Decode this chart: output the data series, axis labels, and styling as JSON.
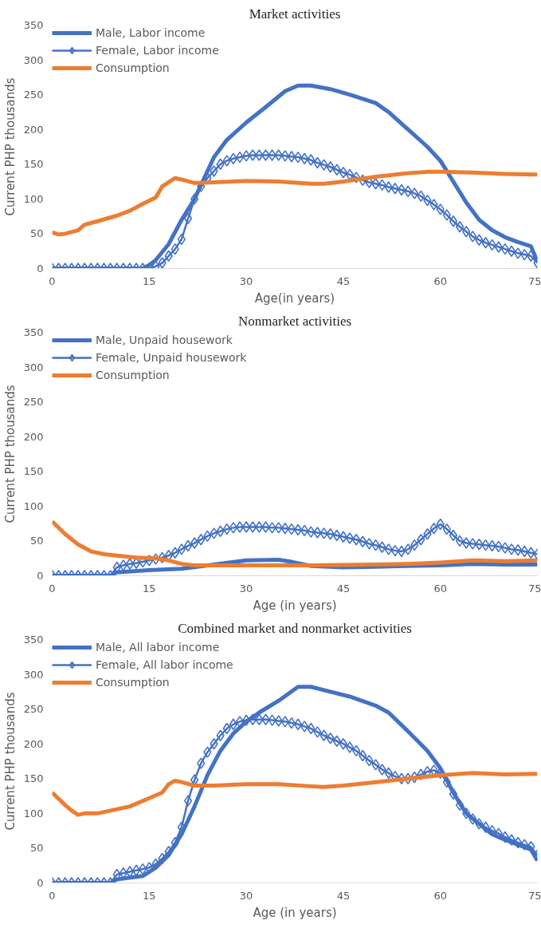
{
  "chart_data": [
    {
      "type": "line",
      "title": "Market activities",
      "xlabel": "Age(in years)",
      "ylabel": "Current PHP thousands",
      "xlim": [
        0,
        75
      ],
      "xticks": [
        0,
        15,
        30,
        45,
        60,
        75
      ],
      "ylim": [
        0,
        350
      ],
      "yticks": [
        0,
        50,
        100,
        150,
        200,
        250,
        300,
        350
      ],
      "grid": false,
      "legend": "top left",
      "series": [
        {
          "name": "Male, Labor income",
          "color": "#4472c4",
          "marker": "none",
          "x": [
            0,
            14,
            15,
            16,
            18,
            20,
            22,
            24,
            25,
            27,
            30,
            33,
            36,
            38,
            40,
            43,
            46,
            50,
            52,
            55,
            58,
            60,
            62,
            64,
            66,
            68,
            70,
            72,
            74,
            75
          ],
          "values": [
            0,
            0,
            5,
            12,
            35,
            70,
            100,
            140,
            160,
            185,
            210,
            232,
            255,
            263,
            263,
            258,
            250,
            238,
            225,
            200,
            175,
            155,
            125,
            95,
            70,
            55,
            45,
            38,
            32,
            10
          ]
        },
        {
          "name": "Female, Labor income",
          "color": "#4472c4",
          "marker": "diamond",
          "x": [
            0,
            1,
            2,
            3,
            4,
            5,
            6,
            7,
            8,
            9,
            10,
            11,
            12,
            13,
            14,
            15,
            16,
            17,
            18,
            19,
            20,
            21,
            22,
            23,
            24,
            25,
            26,
            27,
            28,
            29,
            30,
            31,
            32,
            33,
            34,
            35,
            36,
            37,
            38,
            39,
            40,
            41,
            42,
            43,
            44,
            45,
            46,
            47,
            48,
            49,
            50,
            51,
            52,
            53,
            54,
            55,
            56,
            57,
            58,
            59,
            60,
            61,
            62,
            63,
            64,
            65,
            66,
            67,
            68,
            69,
            70,
            71,
            72,
            73,
            74,
            75
          ],
          "values": [
            0,
            0,
            0,
            0,
            0,
            0,
            0,
            0,
            0,
            0,
            0,
            0,
            0,
            0,
            0,
            0,
            3,
            8,
            18,
            28,
            42,
            72,
            100,
            118,
            130,
            140,
            150,
            155,
            158,
            160,
            162,
            163,
            163,
            163,
            163,
            163,
            162,
            161,
            160,
            158,
            156,
            152,
            149,
            146,
            142,
            138,
            135,
            131,
            127,
            124,
            122,
            120,
            117,
            115,
            113,
            111,
            108,
            104,
            98,
            92,
            85,
            77,
            68,
            60,
            53,
            46,
            41,
            37,
            34,
            31,
            28,
            25,
            22,
            20,
            18,
            8
          ]
        },
        {
          "name": "Consumption",
          "color": "#ed7d31",
          "marker": "none",
          "x": [
            0,
            1,
            2,
            4,
            5,
            7,
            10,
            12,
            14,
            16,
            17,
            19,
            20,
            22,
            25,
            30,
            35,
            40,
            42,
            45,
            50,
            55,
            58,
            60,
            65,
            70,
            75
          ],
          "values": [
            52,
            49,
            50,
            55,
            63,
            68,
            76,
            83,
            93,
            102,
            118,
            130,
            128,
            123,
            124,
            126,
            125,
            122,
            122,
            125,
            132,
            137,
            139,
            139,
            138,
            136,
            135
          ]
        }
      ]
    },
    {
      "type": "line",
      "title": "Nonmarket activities",
      "xlabel": "Age (in years)",
      "ylabel": "Current PHP thousands",
      "xlim": [
        0,
        75
      ],
      "xticks": [
        0,
        15,
        30,
        45,
        60,
        75
      ],
      "ylim": [
        0,
        350
      ],
      "yticks": [
        0,
        50,
        100,
        150,
        200,
        250,
        300,
        350
      ],
      "grid": false,
      "legend": "top left",
      "series": [
        {
          "name": "Male, Unpaid housework",
          "color": "#4472c4",
          "marker": "none",
          "x": [
            0,
            9,
            10,
            15,
            20,
            25,
            30,
            35,
            37,
            40,
            45,
            50,
            55,
            60,
            65,
            70,
            75
          ],
          "values": [
            0,
            0,
            5,
            8,
            10,
            16,
            22,
            23,
            20,
            14,
            12,
            13,
            14,
            15,
            17,
            16,
            16
          ]
        },
        {
          "name": "Female, Unpaid housework",
          "color": "#4472c4",
          "marker": "diamond",
          "x": [
            0,
            1,
            2,
            3,
            4,
            5,
            6,
            7,
            8,
            9,
            10,
            11,
            12,
            13,
            14,
            15,
            16,
            17,
            18,
            19,
            20,
            21,
            22,
            23,
            24,
            25,
            26,
            27,
            28,
            29,
            30,
            31,
            32,
            33,
            34,
            35,
            36,
            37,
            38,
            39,
            40,
            41,
            42,
            43,
            44,
            45,
            46,
            47,
            48,
            49,
            50,
            51,
            52,
            53,
            54,
            55,
            56,
            57,
            58,
            59,
            60,
            61,
            62,
            63,
            64,
            65,
            66,
            67,
            68,
            69,
            70,
            71,
            72,
            73,
            74,
            75
          ],
          "values": [
            0,
            0,
            0,
            0,
            0,
            0,
            0,
            0,
            0,
            0,
            12,
            15,
            17,
            18,
            20,
            22,
            24,
            26,
            29,
            33,
            38,
            43,
            47,
            52,
            57,
            61,
            64,
            67,
            69,
            70,
            70,
            70,
            70,
            70,
            69,
            69,
            68,
            67,
            66,
            65,
            63,
            62,
            61,
            60,
            58,
            56,
            54,
            52,
            49,
            46,
            44,
            41,
            38,
            36,
            35,
            38,
            44,
            52,
            60,
            68,
            74,
            67,
            58,
            50,
            47,
            46,
            45,
            44,
            43,
            42,
            40,
            38,
            37,
            35,
            33,
            31
          ]
        },
        {
          "name": "Consumption",
          "color": "#ed7d31",
          "marker": "none",
          "x": [
            0,
            2,
            4,
            6,
            8,
            10,
            13,
            16,
            18,
            20,
            22,
            25,
            30,
            40,
            50,
            55,
            60,
            65,
            70,
            75
          ],
          "values": [
            78,
            60,
            45,
            35,
            31,
            29,
            26,
            25,
            22,
            17,
            15,
            15,
            15,
            15,
            16,
            17,
            19,
            22,
            21,
            22
          ]
        }
      ]
    },
    {
      "type": "line",
      "title": "Combined market and nonmarket activities",
      "xlabel": "Age (in years)",
      "ylabel": "Current PHP thousands",
      "xlim": [
        0,
        75
      ],
      "xticks": [
        0,
        15,
        30,
        45,
        60,
        75
      ],
      "ylim": [
        0,
        350
      ],
      "yticks": [
        0,
        50,
        100,
        150,
        200,
        250,
        300,
        350
      ],
      "grid": false,
      "legend": "top left",
      "series": [
        {
          "name": "Male, All labor income",
          "color": "#4472c4",
          "marker": "none",
          "x": [
            0,
            9,
            10,
            14,
            16,
            18,
            20,
            22,
            24,
            26,
            28,
            30,
            32,
            35,
            38,
            40,
            43,
            46,
            50,
            52,
            55,
            58,
            60,
            62,
            64,
            66,
            68,
            70,
            72,
            74,
            75
          ],
          "values": [
            0,
            0,
            5,
            10,
            22,
            40,
            70,
            110,
            155,
            190,
            215,
            232,
            245,
            262,
            282,
            282,
            275,
            268,
            255,
            245,
            218,
            190,
            165,
            130,
            100,
            85,
            70,
            62,
            55,
            48,
            32
          ]
        },
        {
          "name": "Female, All labor income",
          "color": "#4472c4",
          "marker": "diamond",
          "x": [
            0,
            1,
            2,
            3,
            4,
            5,
            6,
            7,
            8,
            9,
            10,
            11,
            12,
            13,
            14,
            15,
            16,
            17,
            18,
            19,
            20,
            21,
            22,
            23,
            24,
            25,
            26,
            27,
            28,
            29,
            30,
            31,
            32,
            33,
            34,
            35,
            36,
            37,
            38,
            39,
            40,
            41,
            42,
            43,
            44,
            45,
            46,
            47,
            48,
            49,
            50,
            51,
            52,
            53,
            54,
            55,
            56,
            57,
            58,
            59,
            60,
            61,
            62,
            63,
            64,
            65,
            66,
            67,
            68,
            69,
            70,
            71,
            72,
            73,
            74,
            75
          ],
          "values": [
            0,
            0,
            0,
            0,
            0,
            0,
            0,
            0,
            0,
            0,
            12,
            14,
            16,
            18,
            20,
            22,
            27,
            35,
            45,
            58,
            80,
            118,
            148,
            172,
            188,
            200,
            212,
            222,
            228,
            232,
            234,
            235,
            235,
            235,
            234,
            233,
            232,
            230,
            228,
            225,
            222,
            217,
            212,
            208,
            204,
            200,
            195,
            190,
            183,
            176,
            170,
            163,
            158,
            153,
            150,
            150,
            152,
            156,
            160,
            162,
            158,
            145,
            128,
            112,
            100,
            92,
            85,
            80,
            75,
            71,
            66,
            62,
            58,
            55,
            52,
            40
          ]
        },
        {
          "name": "Consumption",
          "color": "#ed7d31",
          "marker": "none",
          "x": [
            0,
            2,
            3,
            4,
            5,
            7,
            9,
            12,
            15,
            17,
            18,
            19,
            20,
            22,
            25,
            30,
            35,
            40,
            42,
            45,
            50,
            55,
            60,
            65,
            70,
            75
          ],
          "values": [
            130,
            112,
            104,
            98,
            100,
            100,
            104,
            110,
            122,
            130,
            142,
            147,
            145,
            140,
            140,
            142,
            142,
            139,
            138,
            140,
            145,
            150,
            155,
            158,
            156,
            157
          ]
        }
      ]
    }
  ]
}
